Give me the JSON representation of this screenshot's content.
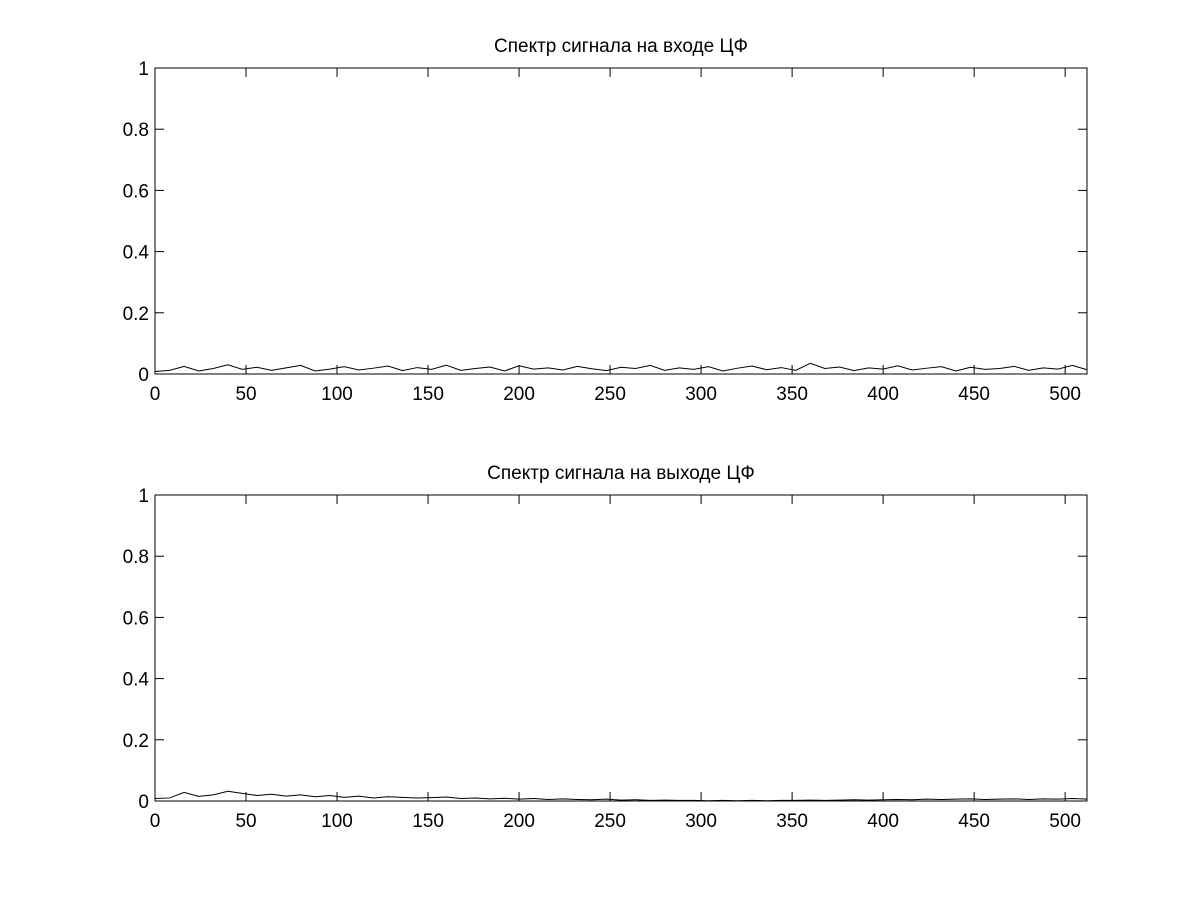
{
  "chart_data": [
    {
      "type": "line",
      "title": "Спектр сигнала на входе ЦФ",
      "color": "#000000",
      "x": [
        0,
        8,
        16,
        24,
        32,
        40,
        48,
        56,
        64,
        72,
        80,
        88,
        96,
        104,
        112,
        120,
        128,
        136,
        144,
        152,
        160,
        168,
        176,
        184,
        192,
        200,
        208,
        216,
        224,
        232,
        240,
        248,
        256,
        264,
        272,
        280,
        288,
        296,
        304,
        312,
        320,
        328,
        336,
        344,
        352,
        360,
        368,
        376,
        384,
        392,
        400,
        408,
        416,
        424,
        432,
        440,
        448,
        456,
        464,
        472,
        480,
        488,
        496,
        504,
        512
      ],
      "values": [
        0.008,
        0.012,
        0.025,
        0.01,
        0.018,
        0.03,
        0.015,
        0.022,
        0.012,
        0.02,
        0.028,
        0.01,
        0.016,
        0.024,
        0.013,
        0.019,
        0.026,
        0.011,
        0.021,
        0.015,
        0.029,
        0.012,
        0.018,
        0.023,
        0.01,
        0.027,
        0.016,
        0.02,
        0.013,
        0.025,
        0.017,
        0.011,
        0.022,
        0.018,
        0.028,
        0.012,
        0.02,
        0.015,
        0.024,
        0.01,
        0.019,
        0.026,
        0.014,
        0.021,
        0.012,
        0.035,
        0.018,
        0.023,
        0.011,
        0.02,
        0.016,
        0.027,
        0.013,
        0.019,
        0.024,
        0.01,
        0.022,
        0.015,
        0.018,
        0.025,
        0.012,
        0.02,
        0.016,
        0.028,
        0.014
      ],
      "xlim": [
        0,
        512
      ],
      "xticks": [
        0,
        50,
        100,
        150,
        200,
        250,
        300,
        350,
        400,
        450,
        500
      ],
      "ylim": [
        0,
        1
      ],
      "yticks": [
        0,
        0.2,
        0.4,
        0.6,
        0.8,
        1
      ]
    },
    {
      "type": "line",
      "title": "Спектр сигнала на выходе ЦФ",
      "color": "#000000",
      "x": [
        0,
        8,
        16,
        24,
        32,
        40,
        48,
        56,
        64,
        72,
        80,
        88,
        96,
        104,
        112,
        120,
        128,
        136,
        144,
        152,
        160,
        168,
        176,
        184,
        192,
        200,
        208,
        216,
        224,
        232,
        240,
        248,
        256,
        264,
        272,
        280,
        288,
        296,
        304,
        312,
        320,
        328,
        336,
        344,
        352,
        360,
        368,
        376,
        384,
        392,
        400,
        408,
        416,
        424,
        432,
        440,
        448,
        456,
        464,
        472,
        480,
        488,
        496,
        504,
        512
      ],
      "values": [
        0.008,
        0.01,
        0.028,
        0.015,
        0.02,
        0.032,
        0.025,
        0.018,
        0.022,
        0.016,
        0.02,
        0.014,
        0.018,
        0.012,
        0.016,
        0.01,
        0.014,
        0.012,
        0.01,
        0.011,
        0.013,
        0.008,
        0.01,
        0.007,
        0.009,
        0.006,
        0.008,
        0.005,
        0.007,
        0.005,
        0.004,
        0.006,
        0.003,
        0.004,
        0.002,
        0.003,
        0.002,
        0.002,
        0.001,
        0.002,
        0.001,
        0.002,
        0.001,
        0.002,
        0.002,
        0.003,
        0.002,
        0.003,
        0.004,
        0.003,
        0.004,
        0.005,
        0.004,
        0.006,
        0.005,
        0.006,
        0.007,
        0.005,
        0.006,
        0.007,
        0.005,
        0.007,
        0.006,
        0.008,
        0.006
      ],
      "xlim": [
        0,
        512
      ],
      "xticks": [
        0,
        50,
        100,
        150,
        200,
        250,
        300,
        350,
        400,
        450,
        500
      ],
      "ylim": [
        0,
        1
      ],
      "yticks": [
        0,
        0.2,
        0.4,
        0.6,
        0.8,
        1
      ]
    }
  ]
}
